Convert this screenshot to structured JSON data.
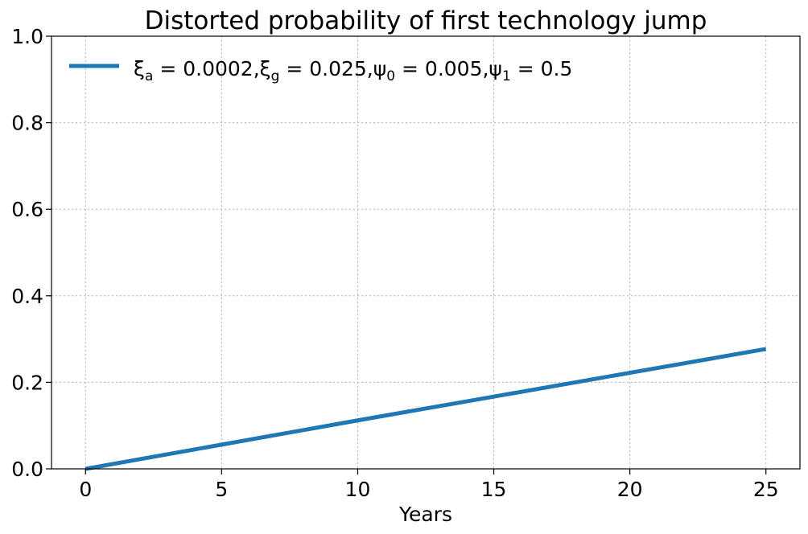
{
  "chart_data": {
    "type": "line",
    "title": "Distorted probability of first technology jump",
    "xlabel": "Years",
    "ylabel": "",
    "xlim": [
      -1.25,
      26.25
    ],
    "ylim": [
      0,
      1
    ],
    "xticks": [
      0,
      5,
      10,
      15,
      20,
      25
    ],
    "xtick_labels": [
      "0",
      "5",
      "10",
      "15",
      "20",
      "25"
    ],
    "yticks": [
      0,
      0.2,
      0.4,
      0.6,
      0.8,
      1.0
    ],
    "ytick_labels": [
      "0.0",
      "0.2",
      "0.4",
      "0.6",
      "0.8",
      "1.0"
    ],
    "grid": true,
    "legend_position": "top-left",
    "series": [
      {
        "name": "ξa = 0.0002,ξg = 0.025,ψ0 = 0.005,ψ1 = 0.5",
        "color": "#1f77b4",
        "x": [
          0,
          5,
          10,
          15,
          20,
          25
        ],
        "y": [
          0.0,
          0.056,
          0.112,
          0.167,
          0.222,
          0.277
        ]
      }
    ]
  }
}
